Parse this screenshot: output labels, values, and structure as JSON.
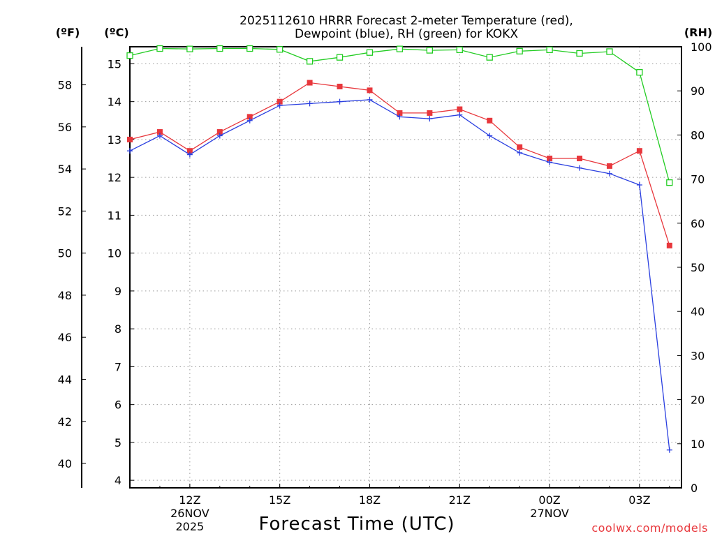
{
  "chart_data": {
    "type": "line",
    "title_lines": [
      "2025112610 HRRR Forecast 2-meter Temperature (red),",
      "Dewpoint (blue), RH (green) for KOKX"
    ],
    "xlabel": "Forecast Time (UTC)",
    "credit": "coolwx.com/models",
    "units": {
      "fahrenheit": "(ºF)",
      "celsius": "(ºC)",
      "rh": "(RH)"
    },
    "x_hours": [
      10,
      11,
      12,
      13,
      14,
      15,
      16,
      17,
      18,
      19,
      20,
      21,
      22,
      23,
      24,
      25,
      26,
      27,
      28
    ],
    "xlim": [
      10,
      28.4
    ],
    "x_ticks": [
      {
        "hour": 12,
        "label": "12Z",
        "sub": [
          "26NOV",
          "2025"
        ]
      },
      {
        "hour": 15,
        "label": "15Z",
        "sub": []
      },
      {
        "hour": 18,
        "label": "18Z",
        "sub": []
      },
      {
        "hour": 21,
        "label": "21Z",
        "sub": []
      },
      {
        "hour": 24,
        "label": "00Z",
        "sub": [
          "27NOV"
        ]
      },
      {
        "hour": 27,
        "label": "03Z",
        "sub": []
      }
    ],
    "y_celsius": {
      "range": [
        3.8,
        15.45
      ],
      "ticks": [
        "4",
        "5",
        "6",
        "7",
        "8",
        "9",
        "10",
        "11",
        "12",
        "13",
        "14",
        "15"
      ]
    },
    "y_fahrenheit": {
      "ticks": [
        "40",
        "42",
        "44",
        "46",
        "48",
        "50",
        "52",
        "54",
        "56",
        "58"
      ]
    },
    "y_rh": {
      "range": [
        0,
        100
      ],
      "ticks": [
        "0",
        "10",
        "20",
        "30",
        "40",
        "50",
        "60",
        "70",
        "80",
        "90",
        "100"
      ]
    },
    "grid": true,
    "series": [
      {
        "name": "Temperature",
        "unit": "C",
        "color": "#e8373c",
        "marker": "filled-square",
        "values": [
          13.0,
          13.2,
          12.7,
          13.2,
          13.6,
          14.0,
          14.5,
          14.4,
          14.3,
          13.7,
          13.7,
          13.8,
          13.5,
          12.8,
          12.5,
          12.5,
          12.3,
          12.7,
          10.2
        ]
      },
      {
        "name": "Dewpoint",
        "unit": "C",
        "color": "#2a3fe0",
        "marker": "plus",
        "values": [
          12.7,
          13.1,
          12.6,
          13.1,
          13.5,
          13.9,
          13.95,
          14.0,
          14.05,
          13.6,
          13.55,
          13.65,
          13.1,
          12.65,
          12.4,
          12.25,
          12.1,
          11.8,
          4.8
        ]
      },
      {
        "name": "RH",
        "unit": "%",
        "color": "#22cc22",
        "marker": "open-square",
        "values": [
          98,
          99.6,
          99.5,
          99.6,
          99.6,
          99.4,
          96.7,
          97.6,
          98.7,
          99.5,
          99.2,
          99.3,
          97.6,
          99.0,
          99.3,
          98.5,
          98.9,
          94.2,
          69.2
        ]
      }
    ]
  }
}
